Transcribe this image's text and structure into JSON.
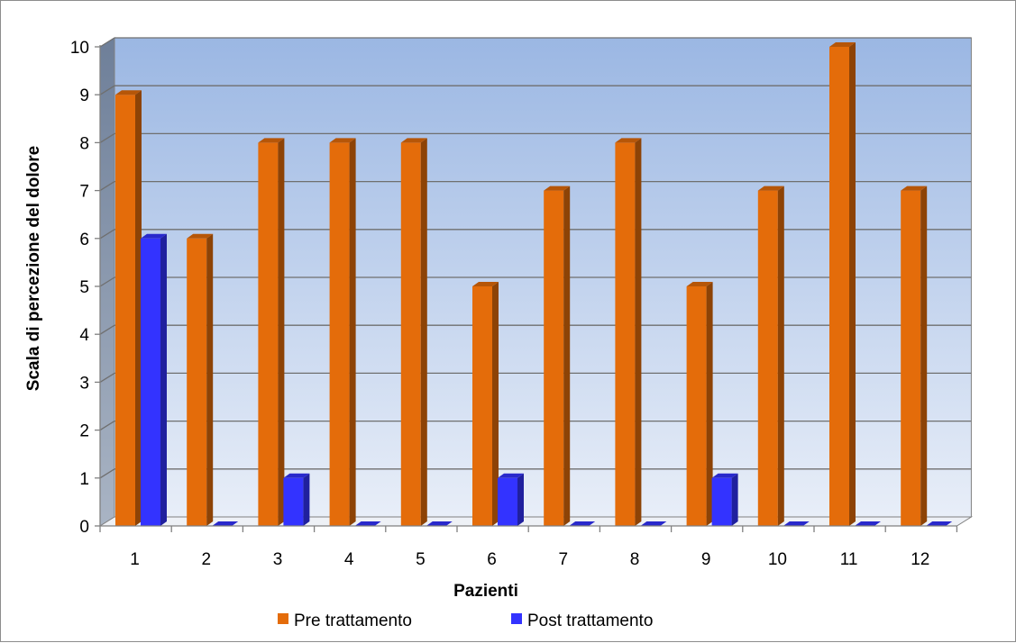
{
  "chart_data": {
    "type": "bar",
    "style": "3d-clustered-column",
    "categories": [
      "1",
      "2",
      "3",
      "4",
      "5",
      "6",
      "7",
      "8",
      "9",
      "10",
      "11",
      "12"
    ],
    "series": [
      {
        "name": "Pre trattamento",
        "color": "#E46C0A",
        "values": [
          9,
          6,
          8,
          8,
          8,
          5,
          7,
          8,
          5,
          7,
          10,
          7
        ]
      },
      {
        "name": "Post trattamento",
        "color": "#3333FF",
        "values": [
          6,
          0,
          1,
          0,
          0,
          1,
          0,
          0,
          1,
          0,
          0,
          0
        ]
      }
    ],
    "xlabel": "Pazienti",
    "ylabel": "Scala di percezione del dolore",
    "ylim": [
      0,
      10
    ],
    "yticks": [
      0,
      1,
      2,
      3,
      4,
      5,
      6,
      7,
      8,
      9,
      10
    ],
    "grid": true,
    "legend_position": "bottom",
    "background_gradient": [
      "#9BB7E3",
      "#E8EEF8"
    ]
  }
}
